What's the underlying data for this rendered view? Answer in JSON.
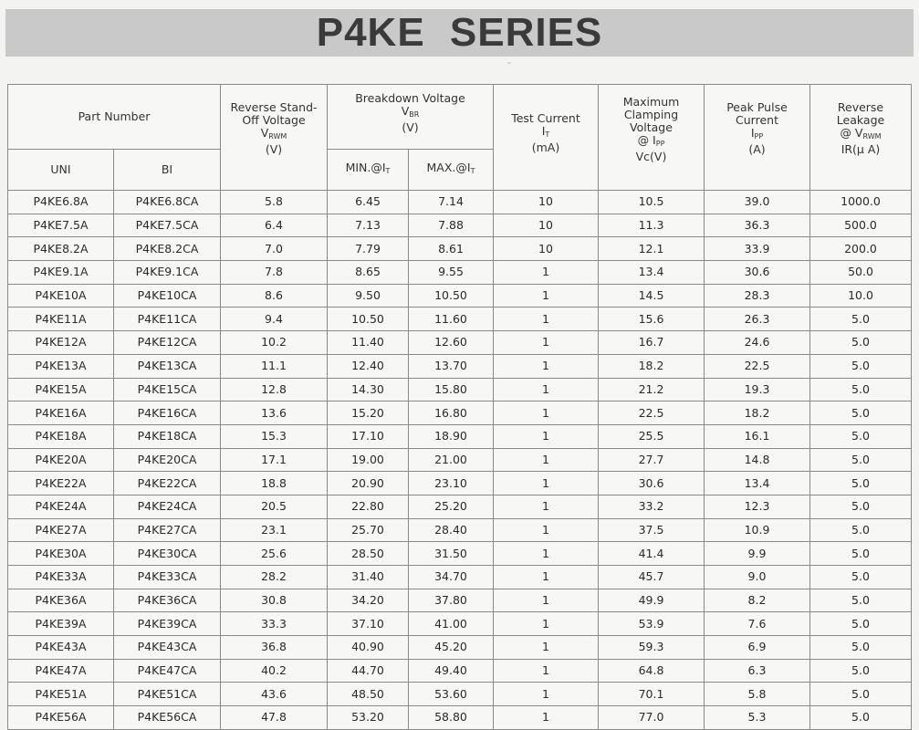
{
  "title": "P4KE SERIES",
  "headers": {
    "part_number": "Part Number",
    "uni": "UNI",
    "bi": "BI",
    "reverse_standoff": [
      "Reverse Stand-",
      "Off Voltage",
      "V",
      "RWM",
      "(V)"
    ],
    "breakdown": [
      "Breakdown Voltage",
      "V",
      "BR",
      "(V)"
    ],
    "min": "MIN.@I",
    "max": "MAX.@I",
    "t_sub": "T",
    "test_current": [
      "Test Current",
      "I",
      "T",
      "(mA)"
    ],
    "clamping": [
      "Maximum",
      "Clamping",
      "Voltage",
      "@ I",
      "PP",
      "Vc(V)"
    ],
    "peak_pulse": [
      "Peak Pulse",
      "Current",
      "I",
      "PP",
      "(A)"
    ],
    "leakage": [
      "Reverse",
      "Leakage",
      "@ V",
      "RWM",
      "IR(μ A)"
    ]
  },
  "rows": [
    [
      "P4KE6.8A",
      "P4KE6.8CA",
      "5.8",
      "6.45",
      "7.14",
      "10",
      "10.5",
      "39.0",
      "1000.0"
    ],
    [
      "P4KE7.5A",
      "P4KE7.5CA",
      "6.4",
      "7.13",
      "7.88",
      "10",
      "11.3",
      "36.3",
      "500.0"
    ],
    [
      "P4KE8.2A",
      "P4KE8.2CA",
      "7.0",
      "7.79",
      "8.61",
      "10",
      "12.1",
      "33.9",
      "200.0"
    ],
    [
      "P4KE9.1A",
      "P4KE9.1CA",
      "7.8",
      "8.65",
      "9.55",
      "1",
      "13.4",
      "30.6",
      "50.0"
    ],
    [
      "P4KE10A",
      "P4KE10CA",
      "8.6",
      "9.50",
      "10.50",
      "1",
      "14.5",
      "28.3",
      "10.0"
    ],
    [
      "P4KE11A",
      "P4KE11CA",
      "9.4",
      "10.50",
      "11.60",
      "1",
      "15.6",
      "26.3",
      "5.0"
    ],
    [
      "P4KE12A",
      "P4KE12CA",
      "10.2",
      "11.40",
      "12.60",
      "1",
      "16.7",
      "24.6",
      "5.0"
    ],
    [
      "P4KE13A",
      "P4KE13CA",
      "11.1",
      "12.40",
      "13.70",
      "1",
      "18.2",
      "22.5",
      "5.0"
    ],
    [
      "P4KE15A",
      "P4KE15CA",
      "12.8",
      "14.30",
      "15.80",
      "1",
      "21.2",
      "19.3",
      "5.0"
    ],
    [
      "P4KE16A",
      "P4KE16CA",
      "13.6",
      "15.20",
      "16.80",
      "1",
      "22.5",
      "18.2",
      "5.0"
    ],
    [
      "P4KE18A",
      "P4KE18CA",
      "15.3",
      "17.10",
      "18.90",
      "1",
      "25.5",
      "16.1",
      "5.0"
    ],
    [
      "P4KE20A",
      "P4KE20CA",
      "17.1",
      "19.00",
      "21.00",
      "1",
      "27.7",
      "14.8",
      "5.0"
    ],
    [
      "P4KE22A",
      "P4KE22CA",
      "18.8",
      "20.90",
      "23.10",
      "1",
      "30.6",
      "13.4",
      "5.0"
    ],
    [
      "P4KE24A",
      "P4KE24CA",
      "20.5",
      "22.80",
      "25.20",
      "1",
      "33.2",
      "12.3",
      "5.0"
    ],
    [
      "P4KE27A",
      "P4KE27CA",
      "23.1",
      "25.70",
      "28.40",
      "1",
      "37.5",
      "10.9",
      "5.0"
    ],
    [
      "P4KE30A",
      "P4KE30CA",
      "25.6",
      "28.50",
      "31.50",
      "1",
      "41.4",
      "9.9",
      "5.0"
    ],
    [
      "P4KE33A",
      "P4KE33CA",
      "28.2",
      "31.40",
      "34.70",
      "1",
      "45.7",
      "9.0",
      "5.0"
    ],
    [
      "P4KE36A",
      "P4KE36CA",
      "30.8",
      "34.20",
      "37.80",
      "1",
      "49.9",
      "8.2",
      "5.0"
    ],
    [
      "P4KE39A",
      "P4KE39CA",
      "33.3",
      "37.10",
      "41.00",
      "1",
      "53.9",
      "7.6",
      "5.0"
    ],
    [
      "P4KE43A",
      "P4KE43CA",
      "36.8",
      "40.90",
      "45.20",
      "1",
      "59.3",
      "6.9",
      "5.0"
    ],
    [
      "P4KE47A",
      "P4KE47CA",
      "40.2",
      "44.70",
      "49.40",
      "1",
      "64.8",
      "6.3",
      "5.0"
    ],
    [
      "P4KE51A",
      "P4KE51CA",
      "43.6",
      "48.50",
      "53.60",
      "1",
      "70.1",
      "5.8",
      "5.0"
    ],
    [
      "P4KE56A",
      "P4KE56CA",
      "47.8",
      "53.20",
      "58.80",
      "1",
      "77.0",
      "5.3",
      "5.0"
    ]
  ]
}
